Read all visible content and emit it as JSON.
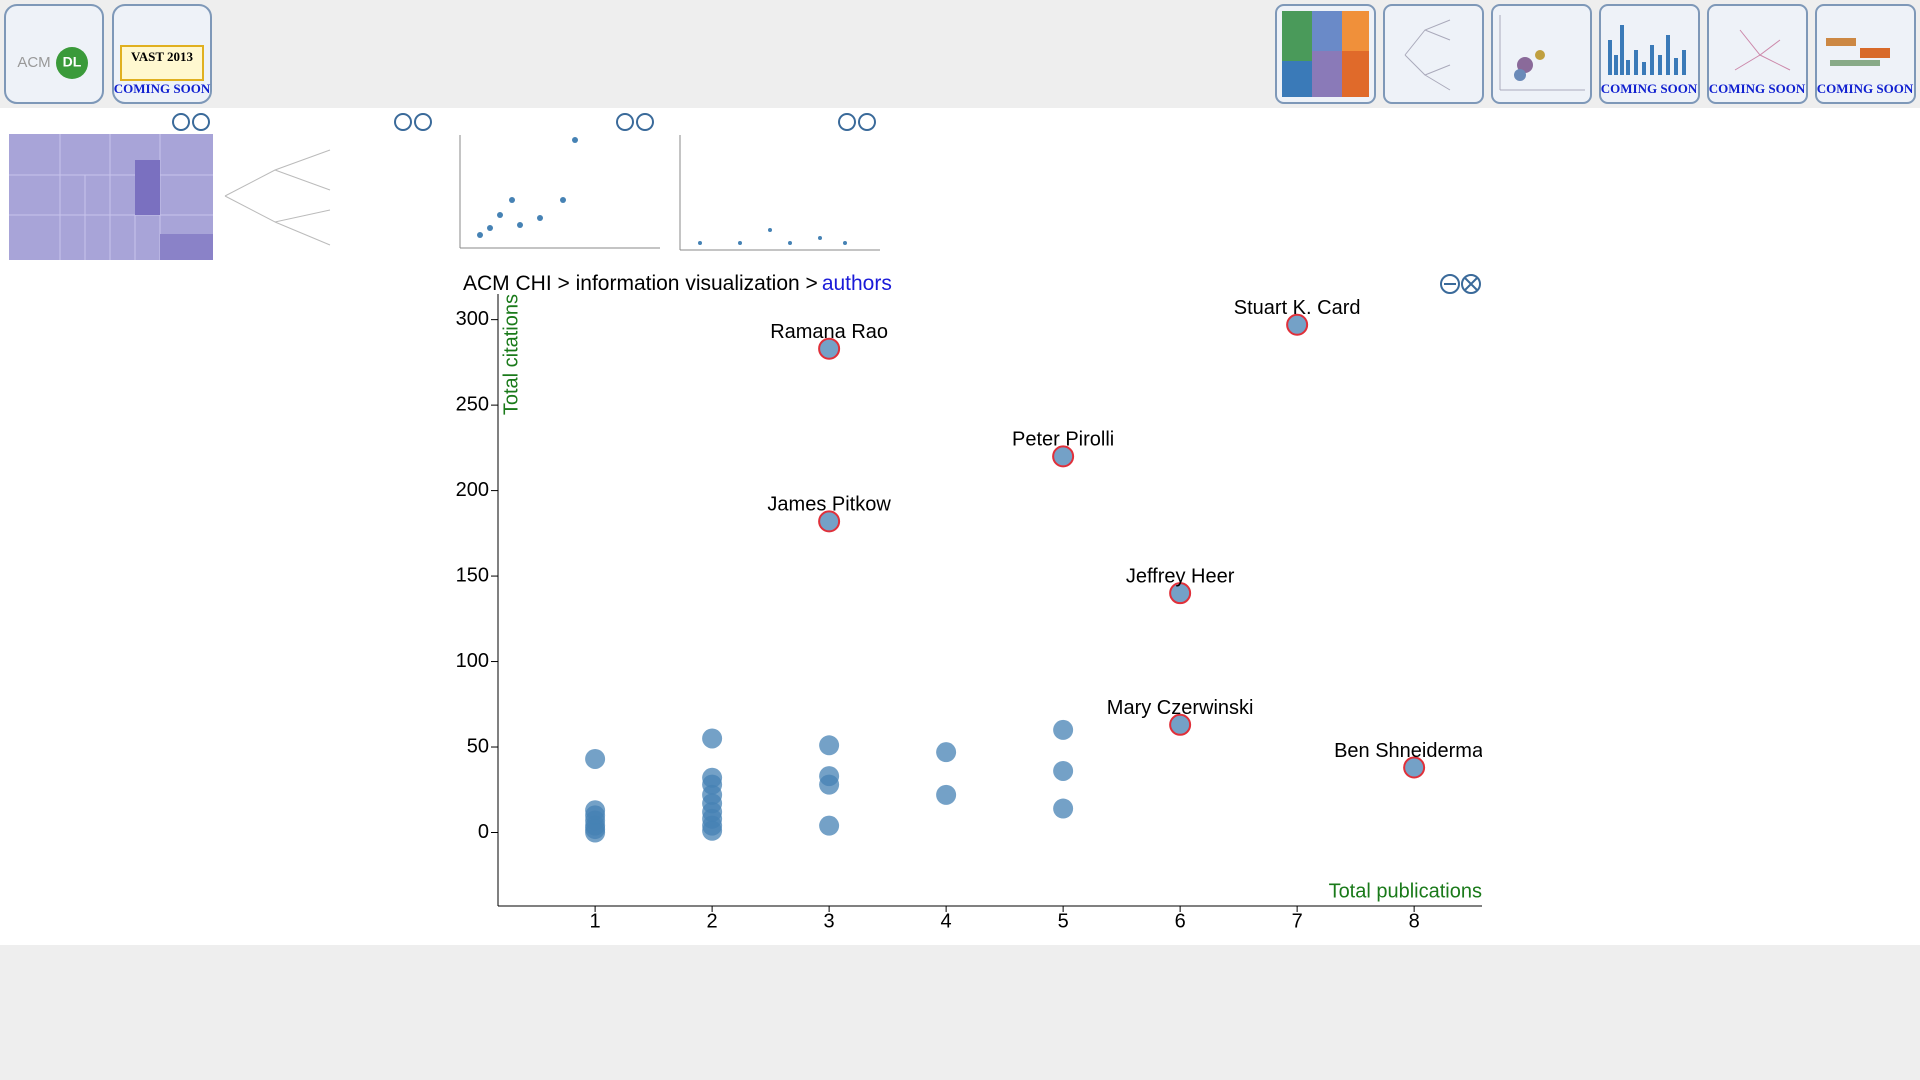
{
  "toolbar": {
    "left": [
      {
        "logo": "ACM",
        "badge": "DL"
      },
      {
        "logo": "VAST 2013",
        "caption": "COMING SOON"
      }
    ],
    "right_captions": [
      "COMING SOON",
      "COMING SOON",
      "COMING SOON"
    ]
  },
  "breadcrumb": {
    "path": "ACM CHI > information visualization >",
    "current": "authors"
  },
  "chart_data": {
    "type": "scatter",
    "x_label": "Total publications",
    "y_label": "Total citations",
    "x": [
      7,
      3,
      5,
      3,
      6,
      6,
      8,
      1,
      1,
      1,
      1,
      1,
      1,
      1,
      2,
      2,
      2,
      2,
      2,
      2,
      2,
      2,
      2,
      3,
      3,
      3,
      3,
      4,
      4,
      5,
      5,
      5
    ],
    "values": [
      297,
      283,
      220,
      182,
      140,
      63,
      38,
      43,
      13,
      10,
      7,
      4,
      2,
      0,
      55,
      32,
      28,
      22,
      17,
      12,
      8,
      4,
      1,
      51,
      33,
      28,
      4,
      47,
      22,
      60,
      36,
      14
    ],
    "labels": [
      "Stuart K. Card",
      "Ramana Rao",
      "Peter Pirolli",
      "James Pitkow",
      "Jeffrey Heer",
      "Mary Czerwinski",
      "Ben Shneiderman",
      null,
      null,
      null,
      null,
      null,
      null,
      null,
      null,
      null,
      null,
      null,
      null,
      null,
      null,
      null,
      null,
      null,
      null,
      null,
      null,
      null,
      null,
      null,
      null,
      null
    ],
    "color": "#4682b4",
    "highlight_color": "#e0303a",
    "xlim": [
      0.17,
      8.58
    ],
    "xticks": [
      1,
      2,
      3,
      4,
      5,
      6,
      7,
      8
    ],
    "ylim": [
      -43,
      315
    ],
    "yticks": [
      0,
      50,
      100,
      150,
      200,
      250,
      300
    ]
  }
}
